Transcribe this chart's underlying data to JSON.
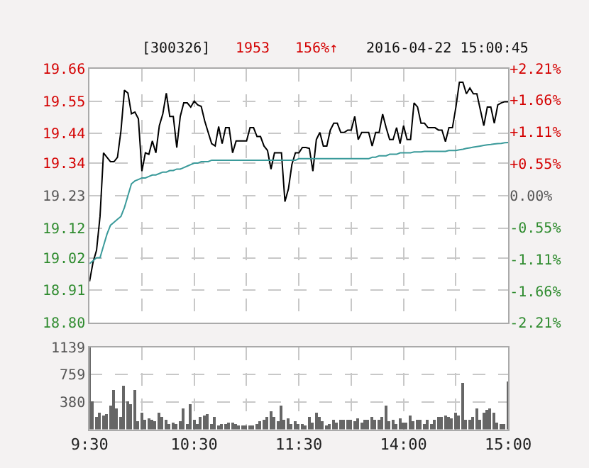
{
  "chart_data": [
    {
      "type": "line",
      "title": "[300326]",
      "annotations": [
        "1953",
        "156%↑",
        "2016-04-22 15:00:45"
      ],
      "categories": [
        null,
        null,
        null,
        null,
        null,
        null,
        null,
        null,
        null,
        null,
        null,
        null,
        null,
        null,
        null,
        null,
        null,
        null,
        null,
        null,
        null,
        null,
        null,
        null,
        null,
        null,
        null,
        null,
        null,
        null,
        null,
        null,
        null,
        null,
        null,
        null,
        null,
        null,
        null,
        null,
        null,
        null,
        null,
        null,
        null,
        null,
        null,
        null,
        null,
        null,
        null,
        null,
        null,
        null,
        null,
        null,
        null,
        null,
        null,
        null,
        null,
        null,
        null,
        null,
        null,
        null,
        null,
        null,
        null,
        null,
        null,
        null,
        null,
        null,
        null,
        null,
        null,
        null,
        null,
        null,
        null,
        null,
        null,
        null,
        null,
        null,
        null,
        null,
        null,
        null,
        null,
        null,
        null,
        null,
        null,
        null,
        null,
        null,
        null,
        null,
        null,
        null,
        null,
        null,
        null,
        null,
        null,
        null,
        null,
        null,
        null,
        null,
        null,
        null,
        null,
        null,
        null,
        null,
        null,
        null,
        null
      ],
      "series": [
        {
          "color": "#000000",
          "values": [
            18.94,
            19.005,
            19.045,
            19.16,
            19.375,
            19.36,
            19.345,
            19.345,
            19.36,
            19.45,
            19.587,
            19.577,
            19.507,
            19.513,
            19.49,
            19.313,
            19.375,
            19.37,
            19.415,
            19.375,
            19.467,
            19.507,
            19.577,
            19.498,
            19.498,
            19.393,
            19.498,
            19.544,
            19.544,
            19.53,
            19.55,
            19.537,
            19.532,
            19.483,
            19.444,
            19.406,
            19.398,
            19.464,
            19.406,
            19.46,
            19.46,
            19.375,
            19.415,
            19.415,
            19.415,
            19.415,
            19.46,
            19.46,
            19.43,
            19.43,
            19.398,
            19.383,
            19.32,
            19.375,
            19.375,
            19.375,
            19.21,
            19.253,
            19.336,
            19.375,
            19.375,
            19.393,
            19.393,
            19.39,
            19.313,
            19.42,
            19.444,
            19.398,
            19.398,
            19.452,
            19.475,
            19.475,
            19.444,
            19.444,
            19.452,
            19.452,
            19.498,
            19.42,
            19.444,
            19.444,
            19.444,
            19.398,
            19.444,
            19.444,
            19.506,
            19.46,
            19.42,
            19.42,
            19.46,
            19.406,
            19.467,
            19.42,
            19.42,
            19.544,
            19.53,
            19.475,
            19.475,
            19.46,
            19.46,
            19.46,
            19.452,
            19.452,
            19.413,
            19.46,
            19.46,
            19.53,
            19.614,
            19.614,
            19.575,
            19.594,
            19.575,
            19.575,
            19.521,
            19.467,
            19.53,
            19.53,
            19.475,
            19.537,
            19.544,
            19.548,
            19.548
          ]
        },
        {
          "color": "#3a9a9a",
          "values": [
            19.0,
            19.01,
            19.02,
            19.02,
            19.06,
            19.1,
            19.13,
            19.14,
            19.15,
            19.16,
            19.19,
            19.23,
            19.27,
            19.28,
            19.285,
            19.29,
            19.29,
            19.295,
            19.3,
            19.3,
            19.305,
            19.31,
            19.31,
            19.315,
            19.315,
            19.32,
            19.32,
            19.325,
            19.33,
            19.335,
            19.34,
            19.34,
            19.345,
            19.345,
            19.345,
            19.35,
            19.35,
            19.35,
            19.35,
            19.35,
            19.35,
            19.35,
            19.35,
            19.35,
            19.35,
            19.35,
            19.35,
            19.35,
            19.35,
            19.35,
            19.35,
            19.35,
            19.35,
            19.35,
            19.35,
            19.35,
            19.35,
            19.35,
            19.35,
            19.35,
            19.355,
            19.355,
            19.355,
            19.355,
            19.355,
            19.355,
            19.355,
            19.355,
            19.355,
            19.355,
            19.355,
            19.355,
            19.355,
            19.355,
            19.355,
            19.355,
            19.355,
            19.355,
            19.355,
            19.355,
            19.355,
            19.36,
            19.36,
            19.365,
            19.365,
            19.365,
            19.37,
            19.37,
            19.37,
            19.375,
            19.375,
            19.375,
            19.375,
            19.378,
            19.378,
            19.378,
            19.38,
            19.38,
            19.38,
            19.38,
            19.38,
            19.38,
            19.38,
            19.383,
            19.383,
            19.383,
            19.385,
            19.387,
            19.39,
            19.392,
            19.394,
            19.396,
            19.398,
            19.4,
            19.402,
            19.403,
            19.405,
            19.406,
            19.407,
            19.409,
            19.41
          ]
        }
      ],
      "ylim": [
        18.8,
        19.66
      ],
      "yticks": [
        {
          "value": 18.8,
          "label": "18.80"
        },
        18.91,
        19.02,
        19.12,
        19.23,
        19.34,
        19.44,
        19.55,
        19.66
      ],
      "y2lim": [
        -2.21,
        2.21
      ],
      "y2ticks": [
        {
          "value": -2.21,
          "label": "-2.21%"
        },
        {
          "value": -1.66,
          "label": "-1.66%"
        },
        {
          "value": -1.11,
          "label": "-1.11%"
        },
        {
          "value": -0.55,
          "label": "-0.55%"
        },
        {
          "value": 0,
          "label": "0.00%"
        },
        {
          "value": 0.55,
          "label": "+0.55%"
        },
        {
          "value": 1.11,
          "label": "+1.11%"
        },
        {
          "value": 1.66,
          "label": "+1.66%"
        },
        {
          "value": 2.21,
          "label": "+2.21%"
        }
      ],
      "grid": true,
      "tick_labels": "y"
    },
    {
      "type": "bar",
      "color": "#666666",
      "categories": [
        "9:30",
        null,
        null,
        null,
        null,
        null,
        null,
        null,
        null,
        null,
        null,
        null,
        null,
        null,
        null,
        null,
        null,
        null,
        null,
        null,
        null,
        null,
        null,
        null,
        null,
        null,
        null,
        null,
        null,
        null,
        "10:30",
        null,
        null,
        null,
        null,
        null,
        null,
        null,
        null,
        null,
        null,
        null,
        null,
        null,
        null,
        null,
        null,
        null,
        null,
        null,
        null,
        null,
        null,
        null,
        null,
        null,
        null,
        null,
        null,
        null,
        "11:30",
        null,
        null,
        null,
        null,
        null,
        null,
        null,
        null,
        null,
        null,
        null,
        null,
        null,
        null,
        null,
        null,
        null,
        null,
        null,
        null,
        null,
        null,
        null,
        null,
        null,
        null,
        null,
        null,
        null,
        "14:00",
        null,
        null,
        null,
        null,
        null,
        null,
        null,
        null,
        null,
        null,
        null,
        null,
        null,
        null,
        null,
        null,
        null,
        null,
        null,
        null,
        null,
        null,
        null,
        null,
        null,
        null,
        null,
        null,
        null,
        "15:00"
      ],
      "values": [
        1139,
        390,
        170,
        240,
        200,
        220,
        330,
        550,
        300,
        170,
        600,
        390,
        360,
        550,
        110,
        240,
        140,
        150,
        130,
        110,
        240,
        170,
        140,
        80,
        90,
        80,
        110,
        300,
        80,
        360,
        140,
        80,
        170,
        200,
        220,
        80,
        170,
        50,
        80,
        80,
        90,
        90,
        80,
        60,
        60,
        60,
        50,
        50,
        80,
        110,
        140,
        170,
        250,
        170,
        110,
        330,
        140,
        150,
        80,
        110,
        80,
        80,
        50,
        170,
        90,
        240,
        170,
        110,
        50,
        80,
        140,
        90,
        140,
        140,
        140,
        140,
        110,
        150,
        90,
        130,
        130,
        170,
        140,
        130,
        170,
        340,
        110,
        140,
        80,
        150,
        90,
        90,
        200,
        110,
        140,
        140,
        80,
        130,
        80,
        130,
        170,
        170,
        190,
        170,
        150,
        240,
        190,
        650,
        140,
        130,
        170,
        300,
        140,
        240,
        270,
        300,
        240,
        90,
        80,
        80,
        660
      ],
      "ylim": [
        0,
        1139
      ],
      "yticks": [
        380,
        759,
        1139
      ],
      "grid": true
    }
  ]
}
